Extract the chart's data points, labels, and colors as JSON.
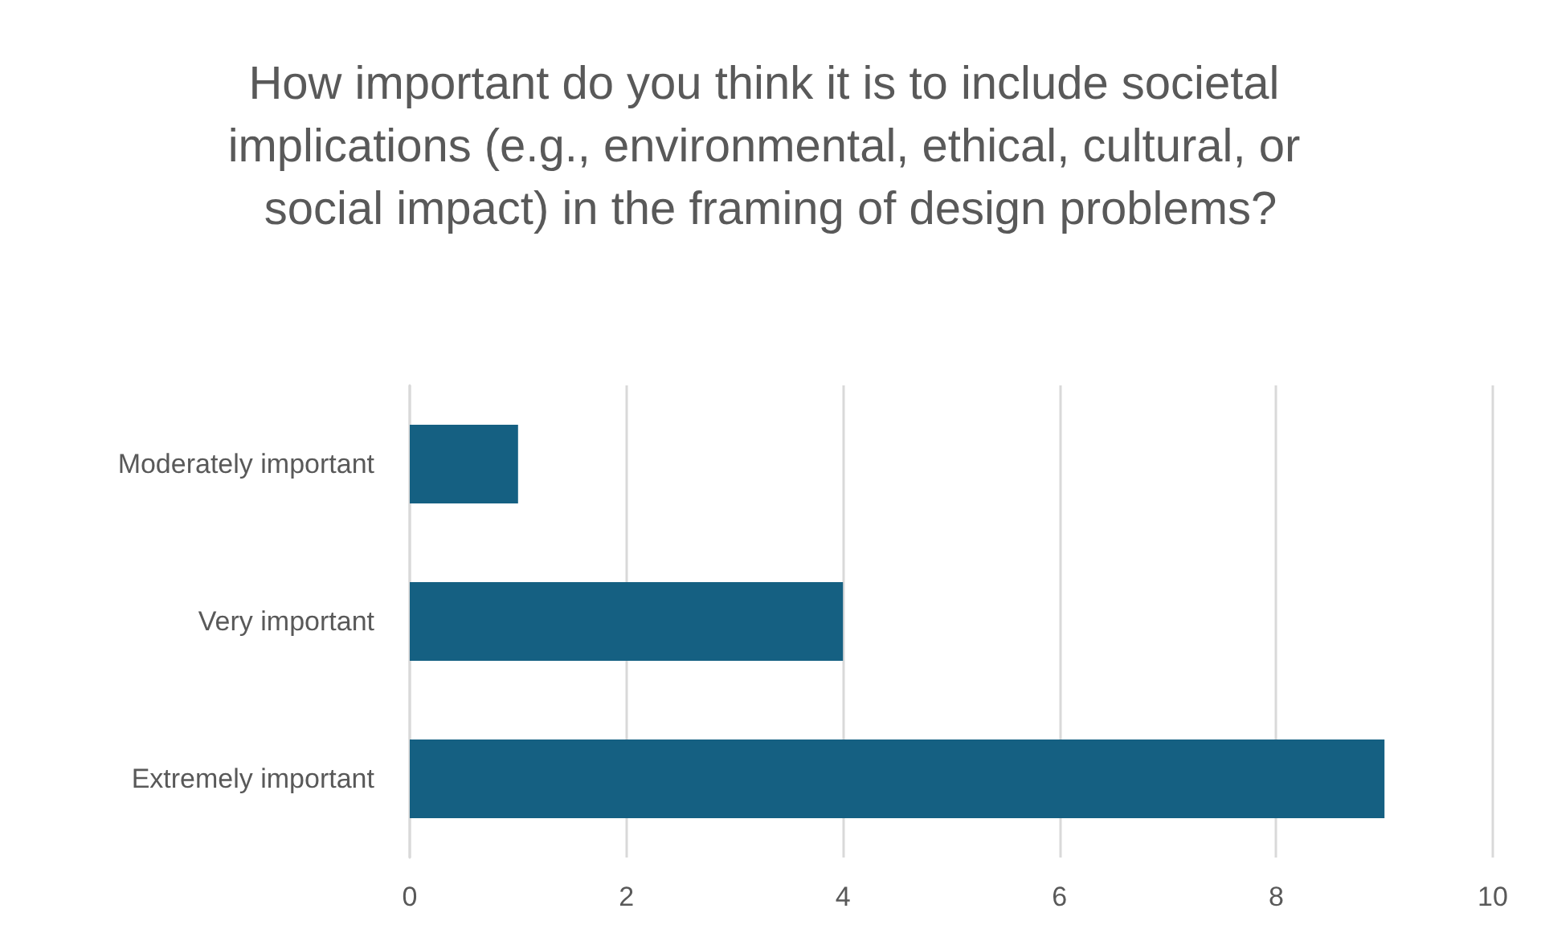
{
  "chart_data": {
    "type": "bar",
    "orientation": "horizontal",
    "title": "How important do you think it is to include societal implications (e.g., environmental, ethical, cultural, or social impact) in the framing of design problems?",
    "categories": [
      "Moderately important",
      "Very important",
      "Extremely important"
    ],
    "values": [
      1,
      4,
      9
    ],
    "color": "#156082",
    "xlim": [
      0,
      10
    ],
    "xticks": [
      0,
      2,
      4,
      6,
      8,
      10
    ],
    "grid": "x"
  }
}
